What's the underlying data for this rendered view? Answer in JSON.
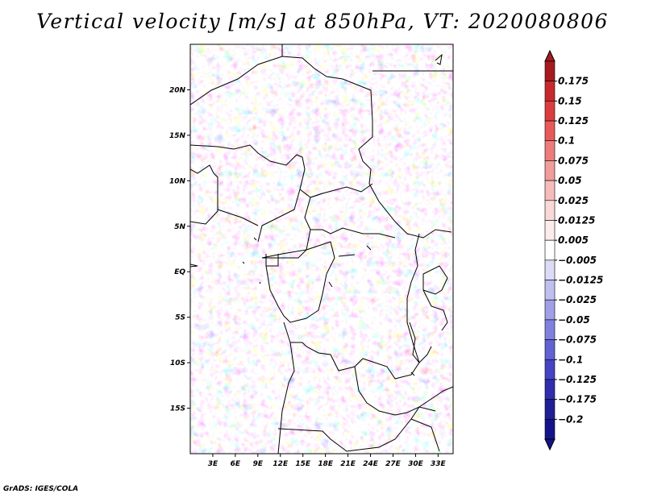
{
  "title": "Vertical velocity [m/s] at 850hPa, VT: 2020080806",
  "credit": "GrADS: IGES/COLA",
  "map": {
    "lon_range": [
      0,
      35
    ],
    "lat_range": [
      -20,
      25
    ],
    "lat_labels": [
      {
        "lat": 20,
        "label": "20N"
      },
      {
        "lat": 15,
        "label": "15N"
      },
      {
        "lat": 10,
        "label": "10N"
      },
      {
        "lat": 5,
        "label": "5N"
      },
      {
        "lat": 0,
        "label": "EQ"
      },
      {
        "lat": -5,
        "label": "5S"
      },
      {
        "lat": -10,
        "label": "10S"
      },
      {
        "lat": -15,
        "label": "15S"
      }
    ],
    "lon_labels": [
      {
        "lon": 3,
        "label": "3E"
      },
      {
        "lon": 6,
        "label": "6E"
      },
      {
        "lon": 9,
        "label": "9E"
      },
      {
        "lon": 12,
        "label": "12E"
      },
      {
        "lon": 15,
        "label": "15E"
      },
      {
        "lon": 18,
        "label": "18E"
      },
      {
        "lon": 21,
        "label": "21E"
      },
      {
        "lon": 24,
        "label": "24E"
      },
      {
        "lon": 27,
        "label": "27E"
      },
      {
        "lon": 30,
        "label": "30E"
      },
      {
        "lon": 33,
        "label": "33E"
      }
    ]
  },
  "colorbar": {
    "labels": [
      "0.175",
      "0.15",
      "0.125",
      "0.1",
      "0.075",
      "0.05",
      "0.025",
      "0.0125",
      "0.005",
      "−0.005",
      "−0.0125",
      "−0.025",
      "−0.05",
      "−0.075",
      "−0.1",
      "−0.125",
      "−0.175",
      "−0.2"
    ],
    "colors": [
      "#a51b20",
      "#c8282d",
      "#dc3c3c",
      "#e85a5a",
      "#ee7c7c",
      "#f29c9c",
      "#f6bcbc",
      "#f9d8d8",
      "#fcecec",
      "#ffffff",
      "#dcdcf6",
      "#c0c0f0",
      "#a0a0e8",
      "#8080e0",
      "#6262d4",
      "#4444c4",
      "#2e2eae",
      "#1f1f96",
      "#14148a"
    ],
    "top_color": "#a51b20",
    "bottom_color": "#14148a"
  }
}
